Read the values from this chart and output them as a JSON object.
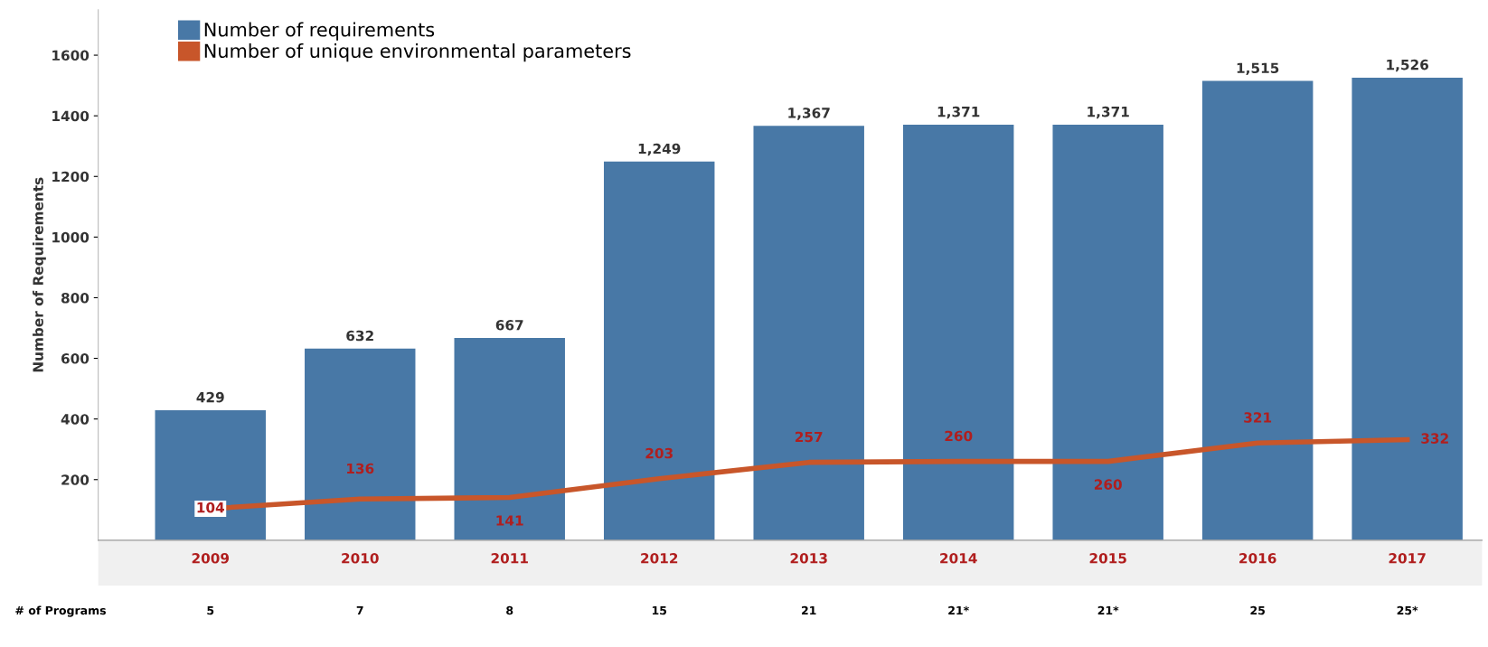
{
  "chart_data": {
    "type": "bar",
    "ylabel": "Number of Requirements",
    "categories": [
      "2009",
      "2010",
      "2011",
      "2012",
      "2013",
      "2014",
      "2015",
      "2016",
      "2017"
    ],
    "series": [
      {
        "name": "Number of requirements",
        "color": "#4878a6",
        "values": [
          429,
          632,
          667,
          1249,
          1367,
          1371,
          1371,
          1515,
          1526
        ],
        "value_labels": [
          "429",
          "632",
          "667",
          "1,249",
          "1,367",
          "1,371",
          "1,371",
          "1,515",
          "1,526"
        ]
      },
      {
        "name": "Number of unique environmental parameters",
        "type": "line",
        "color": "#c8562a",
        "values": [
          104,
          136,
          141,
          203,
          257,
          260,
          260,
          321,
          332
        ],
        "value_labels": [
          "104",
          "136",
          "141",
          "203",
          "257",
          "260",
          "260",
          "321",
          "332"
        ]
      }
    ],
    "ylim": [
      0,
      1750
    ],
    "yticks": [
      200,
      400,
      600,
      800,
      1000,
      1200,
      1400,
      1600
    ],
    "grid": false,
    "legend": "top left",
    "marker": "none",
    "line_style": "solid",
    "annotations": [
      "# of Programs",
      "5",
      "7",
      "8",
      "15",
      "21",
      "21*",
      "21*",
      "25",
      "25*"
    ]
  }
}
